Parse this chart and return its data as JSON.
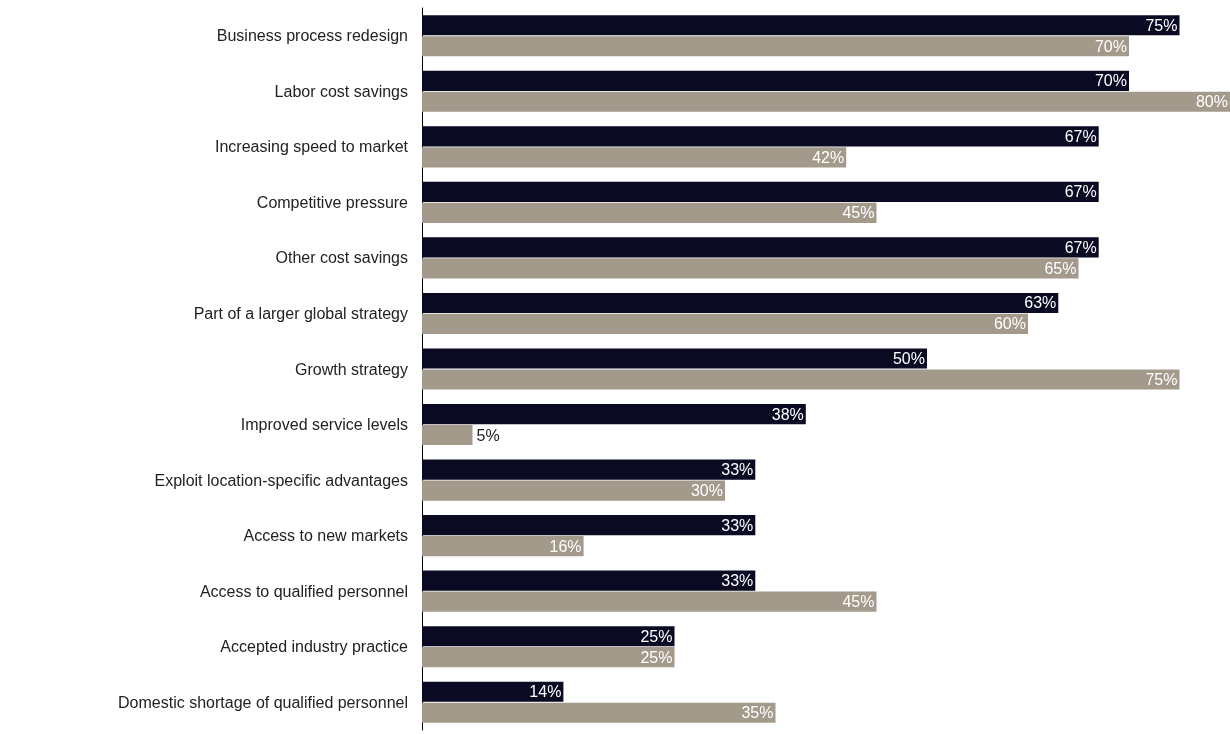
{
  "chart_data": {
    "type": "bar",
    "orientation": "horizontal",
    "categories": [
      "Business process redesign",
      "Labor cost savings",
      "Increasing speed to market",
      "Competitive pressure",
      "Other cost savings",
      "Part of a larger global strategy",
      "Growth strategy",
      "Improved service levels",
      "Exploit location-specific advantages",
      "Access to new markets",
      "Access to qualified personnel",
      "Accepted industry practice",
      "Domestic shortage of qualified personnel"
    ],
    "series": [
      {
        "color": "#0b0a23",
        "values": [
          75,
          70,
          67,
          67,
          67,
          63,
          50,
          38,
          33,
          33,
          33,
          25,
          14
        ],
        "value_labels": [
          "75%",
          "70%",
          "67%",
          "67%",
          "67%",
          "63%",
          "50%",
          "38%",
          "33%",
          "33%",
          "33%",
          "25%",
          "14%"
        ]
      },
      {
        "color": "#a39a8c",
        "values": [
          70,
          80,
          42,
          45,
          65,
          60,
          75,
          5,
          30,
          16,
          45,
          25,
          35
        ],
        "value_labels": [
          "70%",
          "80%",
          "42%",
          "45%",
          "65%",
          "60%",
          "75%",
          "5%",
          "30%",
          "16%",
          "45%",
          "25%",
          "35%"
        ]
      }
    ],
    "grid": false
  }
}
